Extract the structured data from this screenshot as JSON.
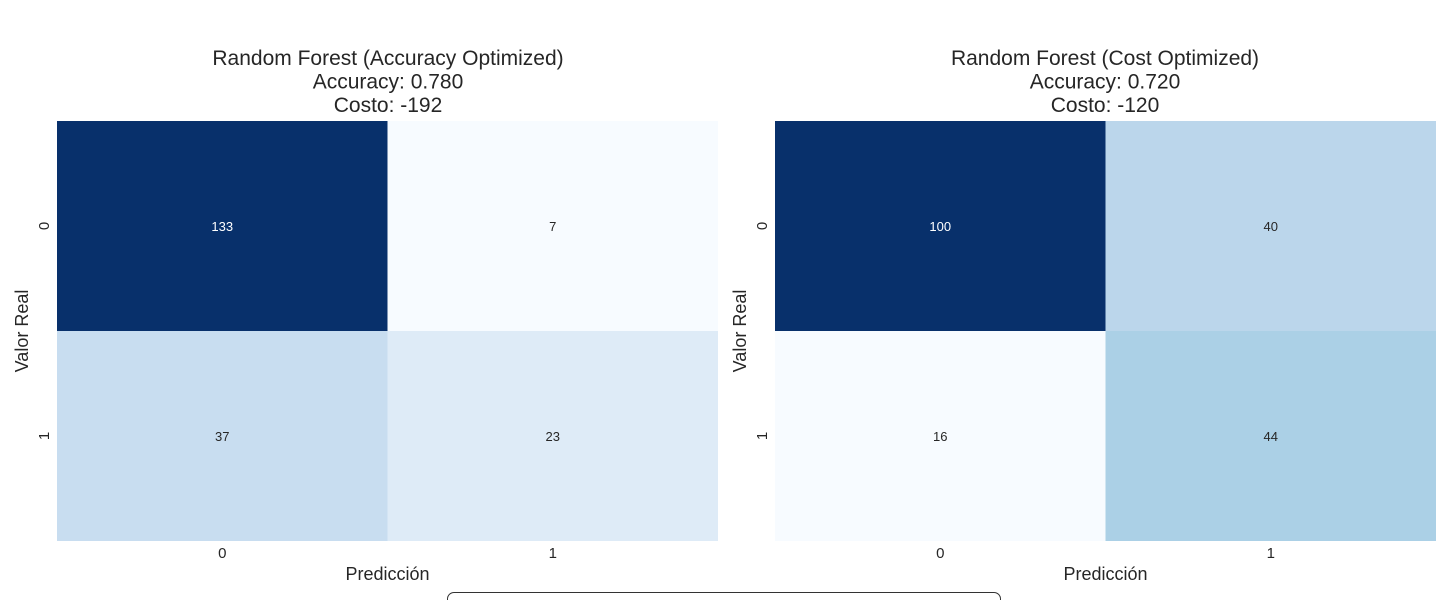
{
  "chart_data": [
    {
      "type": "heatmap",
      "title_lines": [
        "Random Forest (Accuracy Optimized)",
        "Accuracy: 0.780",
        "Costo: -192"
      ],
      "xlabel": "Predicción",
      "ylabel": "Valor Real",
      "x_categories": [
        "0",
        "1"
      ],
      "y_categories": [
        "0",
        "1"
      ],
      "values": [
        [
          133,
          7
        ],
        [
          37,
          23
        ]
      ],
      "colormap": "Blues",
      "colorbar": false
    },
    {
      "type": "heatmap",
      "title_lines": [
        "Random Forest (Cost Optimized)",
        "Accuracy: 0.720",
        "Costo: -120"
      ],
      "xlabel": "Predicción",
      "ylabel": "Valor Real",
      "x_categories": [
        "0",
        "1"
      ],
      "y_categories": [
        "0",
        "1"
      ],
      "values": [
        [
          100,
          40
        ],
        [
          16,
          44
        ]
      ],
      "colormap": "Blues",
      "colorbar": false
    }
  ],
  "colors": {
    "blues_light": "#f7fbff",
    "blues_dark": "#08306b",
    "text_dark": "#262626",
    "text_on_dark": "#ffffff"
  }
}
